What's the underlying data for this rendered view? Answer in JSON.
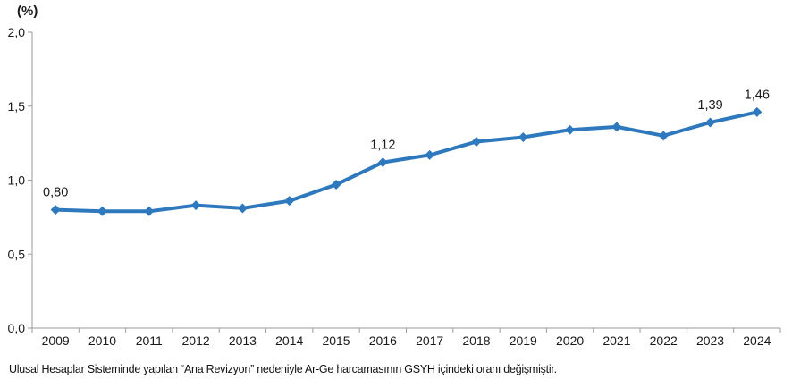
{
  "chart": {
    "footnote": "Ulusal Hesaplar Sisteminde yapılan “Ana Revizyon” nedeniyle Ar-Ge harcamasının GSYH içindeki oranı değişmiştir.",
    "line_color": "#2e78be",
    "axis_color": "#9b9b9b",
    "text_color": "#1a1a1a",
    "background_color": "#ffffff"
  },
  "chart_data": {
    "type": "line",
    "title": "",
    "ylabel": "(%)",
    "xlabel": "",
    "categories": [
      "2009",
      "2010",
      "2011",
      "2012",
      "2013",
      "2014",
      "2015",
      "2016",
      "2017",
      "2018",
      "2019",
      "2020",
      "2021",
      "2022",
      "2023",
      "2024"
    ],
    "values": [
      0.8,
      0.79,
      0.79,
      0.83,
      0.81,
      0.86,
      0.97,
      1.12,
      1.17,
      1.26,
      1.29,
      1.34,
      1.36,
      1.3,
      1.39,
      1.46
    ],
    "point_labels": [
      "0,80",
      "",
      "",
      "",
      "",
      "",
      "",
      "1,12",
      "",
      "",
      "",
      "",
      "",
      "",
      "1,39",
      "1,46"
    ],
    "ylim": [
      0,
      2
    ],
    "yticks": [
      0,
      0.5,
      1,
      1.5,
      2
    ],
    "ytick_labels": [
      "0,0",
      "0,5",
      "1,0",
      "1,5",
      "2,0"
    ],
    "grid": false,
    "legend": false,
    "marker": "diamond"
  }
}
